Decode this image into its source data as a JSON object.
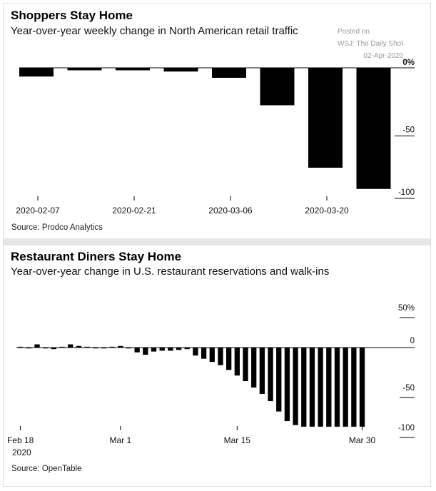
{
  "charts": [
    {
      "title": "Shoppers Stay Home",
      "subtitle": "Year-over-year weekly change in North American retail traffic",
      "source": "Source: Prodco Analytics",
      "watermark": {
        "line1": "Posted on",
        "line2": "WSJ: The Daily Shot",
        "line3": "02-Apr-2020"
      }
    },
    {
      "title": "Restaurant Diners Stay Home",
      "subtitle": "Year-over-year change in U.S. restaurant reservations and walk-ins",
      "source": "Source: OpenTable",
      "year_label": "2020"
    }
  ],
  "chart_data": [
    {
      "type": "bar",
      "title": "Shoppers Stay Home",
      "subtitle": "Year-over-year weekly change in North American retail traffic",
      "categories": [
        "2020-02-07",
        "2020-02-14",
        "2020-02-21",
        "2020-02-28",
        "2020-03-06",
        "2020-03-13",
        "2020-03-20",
        "2020-03-27"
      ],
      "values": [
        -7,
        -2,
        -2,
        -3,
        -8,
        -30,
        -80,
        -97
      ],
      "x_tick_labels": [
        "2020-02-07",
        "2020-02-21",
        "2020-03-06",
        "2020-03-20"
      ],
      "y_ticks": [
        0,
        -50,
        -100
      ],
      "y_tick_labels": [
        "0%",
        "-50",
        "-100"
      ],
      "ylim": [
        -100,
        0
      ],
      "xlabel": "",
      "ylabel": ""
    },
    {
      "type": "bar",
      "title": "Restaurant Diners Stay Home",
      "subtitle": "Year-over-year change in U.S. restaurant reservations and walk-ins",
      "categories": [
        "2020-02-18",
        "2020-02-19",
        "2020-02-20",
        "2020-02-21",
        "2020-02-22",
        "2020-02-23",
        "2020-02-24",
        "2020-02-25",
        "2020-02-26",
        "2020-02-27",
        "2020-02-28",
        "2020-02-29",
        "2020-03-01",
        "2020-03-02",
        "2020-03-03",
        "2020-03-04",
        "2020-03-05",
        "2020-03-06",
        "2020-03-07",
        "2020-03-08",
        "2020-03-09",
        "2020-03-10",
        "2020-03-11",
        "2020-03-12",
        "2020-03-13",
        "2020-03-14",
        "2020-03-15",
        "2020-03-16",
        "2020-03-17",
        "2020-03-18",
        "2020-03-19",
        "2020-03-20",
        "2020-03-21",
        "2020-03-22",
        "2020-03-23",
        "2020-03-24",
        "2020-03-25",
        "2020-03-26",
        "2020-03-27",
        "2020-03-28",
        "2020-03-29",
        "2020-03-30"
      ],
      "values": [
        1,
        -1,
        4,
        -1,
        -2,
        1,
        4,
        2,
        1,
        -1,
        -1,
        1,
        2,
        -1,
        -6,
        -9,
        -5,
        -4,
        -4,
        -3,
        -2,
        -10,
        -14,
        -18,
        -22,
        -28,
        -35,
        -42,
        -50,
        -58,
        -67,
        -80,
        -92,
        -97,
        -99,
        -99,
        -99,
        -99,
        -99,
        -99,
        -99,
        -99
      ],
      "x_tick_labels": [
        "Feb 18",
        "Mar 1",
        "Mar 15",
        "Mar 30"
      ],
      "y_ticks": [
        50,
        0,
        -50,
        -100
      ],
      "y_tick_labels": [
        "50%",
        "0",
        "-50",
        "-100"
      ],
      "ylim": [
        -100,
        50
      ],
      "xlabel": "",
      "ylabel": ""
    }
  ]
}
